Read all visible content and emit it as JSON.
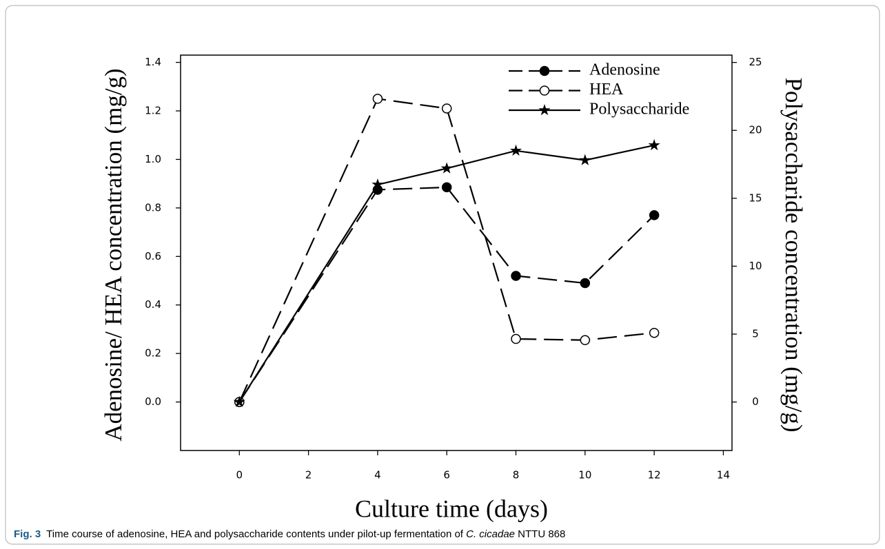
{
  "chart_data": {
    "type": "line",
    "x_label": "Culture time (days)",
    "y_label": "Adenosine/ HEA concentration (mg/g)",
    "y2_label": "Polysaccharide concentration (mg/g)",
    "x": [
      0,
      4,
      6,
      8,
      10,
      12
    ],
    "series": [
      {
        "name": "Adenosine",
        "color": "#000000",
        "style": "dashed",
        "marker": "filled-circle",
        "values": [
          0.0,
          0.875,
          0.885,
          0.52,
          0.49,
          0.77
        ]
      },
      {
        "name": "HEA",
        "color": "#000000",
        "style": "dashed",
        "marker": "open-circle",
        "values": [
          0.0,
          1.25,
          1.21,
          0.26,
          0.255,
          0.285
        ]
      },
      {
        "name": "Polysaccharide",
        "color": "#000000",
        "style": "solid",
        "marker": "star",
        "axis": "y2",
        "values": [
          0.0,
          16.0,
          17.2,
          18.5,
          17.8,
          18.9
        ]
      }
    ],
    "xlim": [
      -1.7,
      14.25
    ],
    "xticks": [
      0,
      2,
      4,
      6,
      8,
      10,
      12,
      14
    ],
    "ylim": [
      -0.2,
      1.43
    ],
    "yticks": [
      {
        "value": 0,
        "label": "0.0"
      },
      0.2,
      0.4,
      0.6,
      0.8,
      {
        "value": 1,
        "label": "1.0"
      },
      1.2,
      1.4
    ],
    "y2lim": [
      -3.57,
      25.54
    ],
    "y2ticks": [
      0,
      5,
      10,
      15,
      20,
      25
    ],
    "legend": "upper right",
    "grid": false
  },
  "caption": {
    "label": "Fig. 3",
    "text": "Time course of adenosine, HEA and polysaccharide contents under pilot-up fermentation of ",
    "species": "C. cicadae",
    "text_after": " NTTU 868"
  }
}
